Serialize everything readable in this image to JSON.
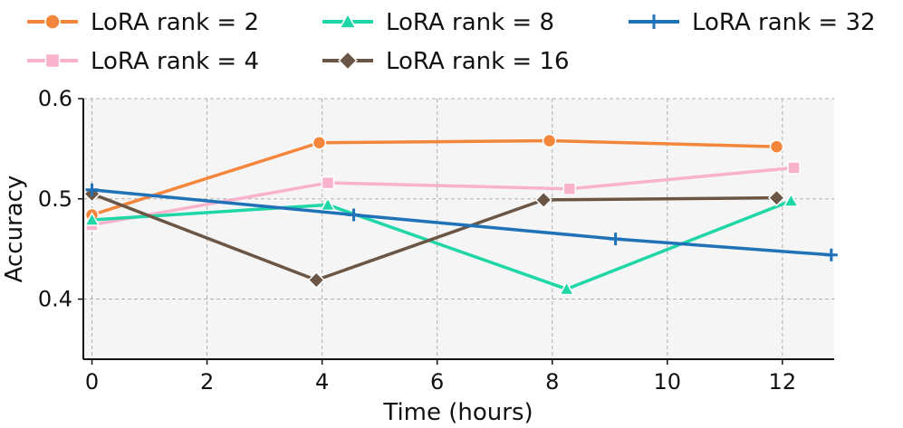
{
  "chart_data": {
    "type": "line",
    "title": "",
    "xlabel": "Time (hours)",
    "ylabel": "Accuracy",
    "xlim": [
      -0.15,
      12.9
    ],
    "ylim": [
      0.34,
      0.6
    ],
    "xticks": [
      0,
      2,
      4,
      6,
      8,
      10,
      12
    ],
    "xtick_labels": [
      "0",
      "2",
      "4",
      "6",
      "8",
      "10",
      "12"
    ],
    "yticks": [
      0.4,
      0.5,
      0.6
    ],
    "ytick_labels": [
      "0.4",
      "0.5",
      "0.6"
    ],
    "grid": true,
    "legend_position": "top",
    "series": [
      {
        "name": "LoRA rank = 2",
        "color": "#f4863c",
        "marker": "circle",
        "points": [
          [
            0.0,
            0.484
          ],
          [
            3.95,
            0.556
          ],
          [
            7.95,
            0.558
          ],
          [
            11.9,
            0.552
          ]
        ]
      },
      {
        "name": "LoRA rank = 4",
        "color": "#f9b2cc",
        "marker": "square",
        "points": [
          [
            0.0,
            0.474
          ],
          [
            4.1,
            0.516
          ],
          [
            8.3,
            0.51
          ],
          [
            12.2,
            0.531
          ]
        ]
      },
      {
        "name": "LoRA rank = 8",
        "color": "#1fd6a6",
        "marker": "triangle",
        "points": [
          [
            0.0,
            0.479
          ],
          [
            4.1,
            0.494
          ],
          [
            8.25,
            0.41
          ],
          [
            12.15,
            0.498
          ]
        ]
      },
      {
        "name": "LoRA rank = 16",
        "color": "#6b5645",
        "marker": "diamond",
        "points": [
          [
            0.0,
            0.505
          ],
          [
            3.9,
            0.419
          ],
          [
            7.85,
            0.499
          ],
          [
            11.9,
            0.501
          ]
        ]
      },
      {
        "name": "LoRA rank = 32",
        "color": "#1f72b8",
        "marker": "plus",
        "points": [
          [
            0.0,
            0.509
          ],
          [
            4.55,
            0.484
          ],
          [
            9.1,
            0.46
          ],
          [
            12.85,
            0.444
          ]
        ]
      }
    ]
  }
}
